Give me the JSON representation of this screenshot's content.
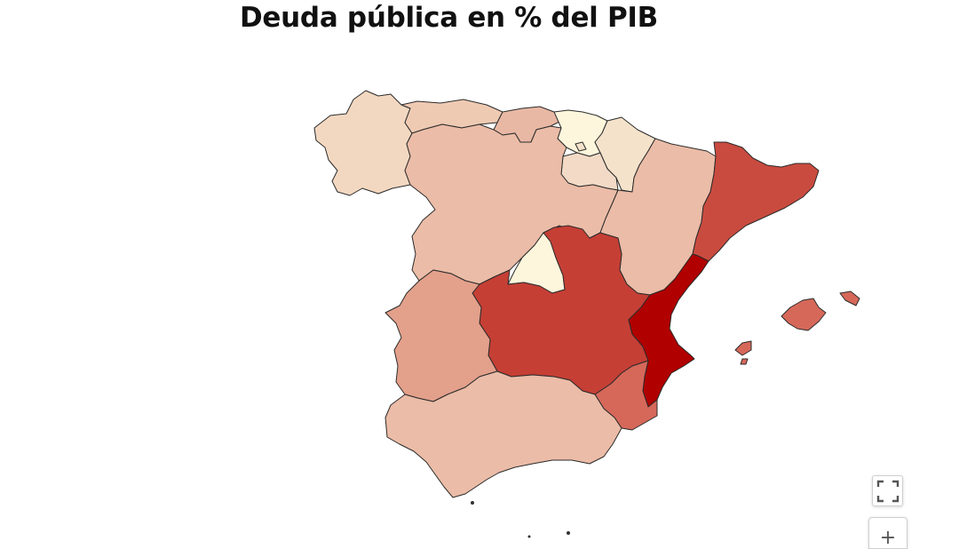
{
  "title": "Deuda pública en % del PIB",
  "palette": {
    "lightest": "#fdf6dc",
    "light": "#f5e2cb",
    "light_mid": "#f3d8c1",
    "mid": "#ebbca7",
    "mid_dark": "#e0917e",
    "dark": "#d6685a",
    "darker": "#c8463a",
    "darkest": "#bf3a32",
    "max": "#b10000"
  },
  "regions": [
    {
      "id": "galicia",
      "color": "#f3d8c1"
    },
    {
      "id": "asturias",
      "color": "#efcab3"
    },
    {
      "id": "cantabria",
      "color": "#e9b8a4"
    },
    {
      "id": "pais-vasco",
      "color": "#fdf6dc"
    },
    {
      "id": "navarra",
      "color": "#f5e2cb"
    },
    {
      "id": "la-rioja",
      "color": "#f2dac6"
    },
    {
      "id": "castilla-y-leon",
      "color": "#ebbca7"
    },
    {
      "id": "aragon",
      "color": "#ebbca7"
    },
    {
      "id": "cataluna",
      "color": "#c94b3f"
    },
    {
      "id": "madrid",
      "color": "#fdf6dc"
    },
    {
      "id": "castilla-la-mancha",
      "color": "#c53f35"
    },
    {
      "id": "extremadura",
      "color": "#e3a08b"
    },
    {
      "id": "comunidad-valenciana",
      "color": "#b10000"
    },
    {
      "id": "murcia",
      "color": "#d6685a"
    },
    {
      "id": "andalucia",
      "color": "#ebbca7"
    },
    {
      "id": "baleares",
      "color": "#d6685a"
    }
  ],
  "controls": {
    "fullscreen_icon": "fullscreen-icon",
    "zoom_in_label": "+"
  }
}
